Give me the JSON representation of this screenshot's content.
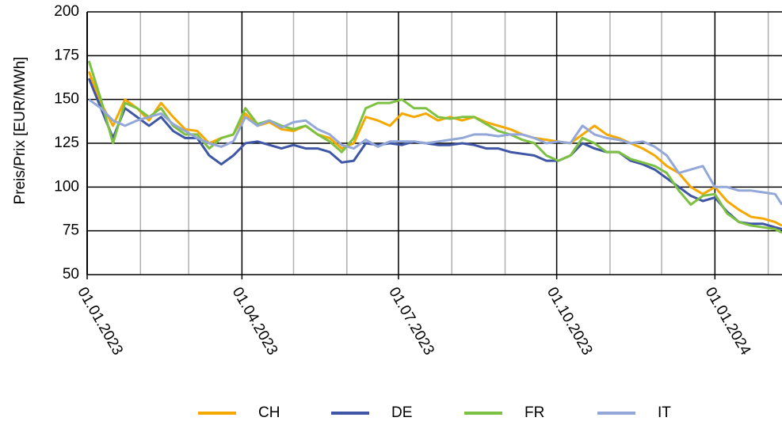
{
  "chart_data": {
    "type": "line",
    "ylabel": "Preis/Prix [EUR/MWh]",
    "x": [
      "02.01.2023",
      "09.01.2023",
      "16.01.2023",
      "23.01.2023",
      "30.01.2023",
      "06.02.2023",
      "13.02.2023",
      "20.02.2023",
      "27.02.2023",
      "06.03.2023",
      "13.03.2023",
      "20.03.2023",
      "27.03.2023",
      "03.04.2023",
      "10.04.2023",
      "17.04.2023",
      "24.04.2023",
      "01.05.2023",
      "08.05.2023",
      "15.05.2023",
      "22.05.2023",
      "29.05.2023",
      "05.06.2023",
      "12.06.2023",
      "19.06.2023",
      "26.06.2023",
      "03.07.2023",
      "10.07.2023",
      "17.07.2023",
      "24.07.2023",
      "31.07.2023",
      "07.08.2023",
      "14.08.2023",
      "21.08.2023",
      "28.08.2023",
      "04.09.2023",
      "11.09.2023",
      "18.09.2023",
      "25.09.2023",
      "02.10.2023",
      "09.10.2023",
      "16.10.2023",
      "23.10.2023",
      "30.10.2023",
      "06.11.2023",
      "13.11.2023",
      "20.11.2023",
      "27.11.2023",
      "04.12.2023",
      "11.12.2023",
      "18.12.2023",
      "25.12.2023",
      "01.01.2024",
      "08.01.2024",
      "15.01.2024",
      "22.01.2024",
      "29.01.2024",
      "05.02.2024",
      "09.02.2024"
    ],
    "series": [
      {
        "name": "CH",
        "color": "#f5a800",
        "values": [
          166,
          148,
          135,
          150,
          145,
          138,
          148,
          140,
          133,
          132,
          125,
          128,
          130,
          142,
          135,
          137,
          133,
          132,
          135,
          130,
          128,
          122,
          125,
          140,
          138,
          135,
          142,
          140,
          142,
          138,
          140,
          138,
          140,
          137,
          135,
          133,
          130,
          128,
          127,
          126,
          125,
          130,
          135,
          130,
          128,
          125,
          122,
          118,
          112,
          108,
          100,
          96,
          100,
          92,
          87,
          83,
          82,
          80,
          78
        ]
      },
      {
        "name": "DE",
        "color": "#3f56a6",
        "values": [
          162,
          145,
          128,
          145,
          140,
          135,
          140,
          132,
          128,
          128,
          118,
          113,
          118,
          125,
          126,
          124,
          122,
          124,
          122,
          122,
          120,
          114,
          115,
          125,
          124,
          125,
          124,
          126,
          125,
          124,
          124,
          125,
          124,
          122,
          122,
          120,
          119,
          118,
          115,
          115,
          118,
          125,
          122,
          120,
          120,
          115,
          113,
          110,
          105,
          100,
          95,
          92,
          94,
          86,
          80,
          79,
          79,
          77,
          76
        ]
      },
      {
        "name": "FR",
        "color": "#7dc142",
        "values": [
          172,
          150,
          125,
          148,
          145,
          140,
          145,
          135,
          130,
          130,
          122,
          128,
          130,
          145,
          136,
          138,
          135,
          133,
          135,
          130,
          126,
          120,
          128,
          145,
          148,
          148,
          150,
          145,
          145,
          140,
          139,
          140,
          140,
          136,
          132,
          130,
          127,
          125,
          118,
          115,
          118,
          128,
          125,
          120,
          120,
          116,
          114,
          112,
          108,
          98,
          90,
          95,
          96,
          85,
          80,
          78,
          77,
          76,
          74
        ]
      },
      {
        "name": "IT",
        "color": "#93a8d8",
        "values": [
          150,
          145,
          138,
          135,
          138,
          140,
          142,
          136,
          132,
          128,
          125,
          123,
          126,
          140,
          135,
          138,
          134,
          137,
          138,
          133,
          130,
          124,
          122,
          127,
          123,
          126,
          126,
          126,
          125,
          126,
          127,
          128,
          130,
          130,
          129,
          130,
          130,
          128,
          125,
          126,
          125,
          135,
          130,
          128,
          127,
          125,
          126,
          123,
          118,
          108,
          110,
          112,
          100,
          100,
          98,
          98,
          97,
          96,
          90
        ]
      }
    ],
    "xlim": [
      "01.01.2023",
      "09.02.2024"
    ],
    "xticks": [
      "01.01.2023",
      "01.04.2023",
      "01.07.2023",
      "01.10.2023",
      "01.01.2024"
    ],
    "xticks_minor": [
      "01.02.2023",
      "01.03.2023",
      "01.05.2023",
      "01.06.2023",
      "01.08.2023",
      "01.09.2023",
      "01.11.2023",
      "01.12.2023",
      "01.02.2024"
    ],
    "ylim": [
      50,
      200
    ],
    "yticks": [
      50,
      75,
      100,
      125,
      150,
      175,
      200
    ],
    "grid": true
  }
}
